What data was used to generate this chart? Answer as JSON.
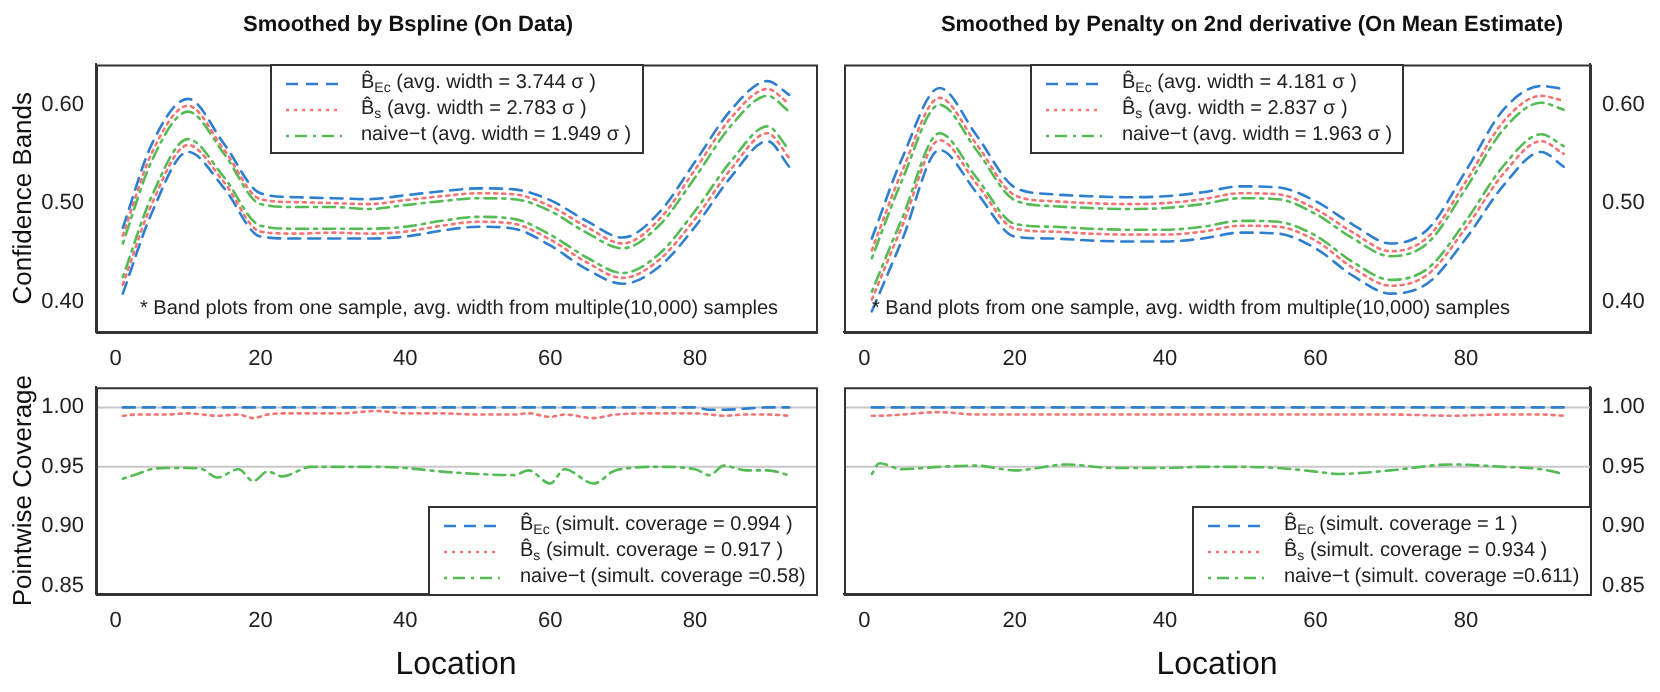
{
  "chart_data": [
    {
      "type": "line",
      "title": "Smoothed by Bspline (On Data)",
      "ylabel": "Confidence Bands",
      "legend": "top",
      "marker": "none",
      "annotations": [
        "* Band plots from one sample, avg. width from multiple(10,000) samples"
      ],
      "x": [
        1,
        5,
        10,
        15,
        20,
        25,
        30,
        35,
        40,
        45,
        50,
        55,
        60,
        65,
        70,
        75,
        80,
        85,
        90,
        93
      ],
      "xlim": [
        -2.7,
        96.7
      ],
      "xticks": [
        0,
        20,
        40,
        60,
        80
      ],
      "ylim": [
        0.369,
        0.641
      ],
      "yticks": [
        {
          "value": 0.4,
          "label": "0.40"
        },
        {
          "value": 0.5,
          "label": "0.50"
        },
        {
          "value": 0.6,
          "label": "0.60"
        }
      ],
      "series": [
        {
          "name": "B̂$_{Ec}$  (avg. width = 3.744 σ )",
          "color": "#2f7fd0",
          "line_style": "dashed",
          "values": [
            0.475,
            0.56,
            0.606,
            0.56,
            0.51,
            0.506,
            0.505,
            0.504,
            0.508,
            0.512,
            0.515,
            0.514,
            0.503,
            0.482,
            0.465,
            0.49,
            0.542,
            0.595,
            0.624,
            0.61
          ]
        },
        {
          "name": "B̂$_{s}$  (avg. width = 2.783 σ )",
          "color": "#f27474",
          "line_style": "dotted",
          "values": [
            0.467,
            0.551,
            0.599,
            0.554,
            0.504,
            0.501,
            0.5,
            0.499,
            0.503,
            0.507,
            0.51,
            0.509,
            0.497,
            0.476,
            0.459,
            0.483,
            0.534,
            0.587,
            0.616,
            0.601
          ]
        },
        {
          "name": "naive−t (avg. width = 1.949 σ )",
          "color": "#55bb55",
          "line_style": "dashdot",
          "values": [
            0.459,
            0.543,
            0.593,
            0.55,
            0.499,
            0.496,
            0.496,
            0.494,
            0.498,
            0.502,
            0.505,
            0.504,
            0.492,
            0.47,
            0.454,
            0.477,
            0.526,
            0.579,
            0.609,
            0.593
          ]
        },
        {
          "color": "#55bb55",
          "line_style": "dashdot",
          "values": [
            0.425,
            0.507,
            0.565,
            0.526,
            0.477,
            0.474,
            0.474,
            0.474,
            0.476,
            0.482,
            0.486,
            0.484,
            0.468,
            0.445,
            0.429,
            0.448,
            0.492,
            0.543,
            0.578,
            0.554
          ]
        },
        {
          "color": "#f27474",
          "line_style": "dotted",
          "values": [
            0.417,
            0.499,
            0.559,
            0.521,
            0.471,
            0.469,
            0.47,
            0.469,
            0.471,
            0.477,
            0.481,
            0.479,
            0.463,
            0.44,
            0.424,
            0.442,
            0.484,
            0.535,
            0.571,
            0.546
          ]
        },
        {
          "color": "#2f7fd0",
          "line_style": "dashed",
          "values": [
            0.408,
            0.49,
            0.552,
            0.515,
            0.466,
            0.464,
            0.464,
            0.464,
            0.466,
            0.472,
            0.476,
            0.474,
            0.457,
            0.433,
            0.418,
            0.435,
            0.476,
            0.527,
            0.563,
            0.537
          ]
        }
      ]
    },
    {
      "type": "line",
      "title": "Smoothed by Penalty on 2nd derivative (On Mean Estimate)",
      "legend": "top",
      "marker": "none",
      "annotations": [
        "* Band plots from one sample, avg. width from multiple(10,000) samples"
      ],
      "x": [
        1,
        5,
        10,
        15,
        20,
        25,
        30,
        35,
        40,
        45,
        50,
        55,
        60,
        65,
        70,
        75,
        80,
        85,
        90,
        93
      ],
      "xlim": [
        -2.7,
        96.5
      ],
      "xticks": [
        0,
        20,
        40,
        60,
        80
      ],
      "y2lim": [
        0.369,
        0.641
      ],
      "y2ticks": [
        {
          "value": 0.4,
          "label": "0.40"
        },
        {
          "value": 0.5,
          "label": "0.50"
        },
        {
          "value": 0.6,
          "label": "0.60"
        }
      ],
      "series": [
        {
          "name": "B̂$_{Ec}$  (avg. width = 4.181 σ )",
          "color": "#2f7fd0",
          "line_style": "dashed",
          "axis": "y2",
          "values": [
            0.464,
            0.545,
            0.617,
            0.568,
            0.516,
            0.509,
            0.507,
            0.506,
            0.507,
            0.511,
            0.517,
            0.516,
            0.502,
            0.478,
            0.459,
            0.474,
            0.533,
            0.595,
            0.619,
            0.616
          ]
        },
        {
          "name": "B̂$_{s}$  (avg. width = 2.837 σ )",
          "color": "#f27474",
          "line_style": "dotted",
          "axis": "y2",
          "values": [
            0.452,
            0.532,
            0.607,
            0.559,
            0.508,
            0.502,
            0.5,
            0.499,
            0.5,
            0.504,
            0.51,
            0.509,
            0.494,
            0.47,
            0.451,
            0.466,
            0.522,
            0.583,
            0.609,
            0.604
          ]
        },
        {
          "name": "naive−t (avg. width = 1.963 σ )",
          "color": "#55bb55",
          "line_style": "dashdot",
          "axis": "y2",
          "values": [
            0.444,
            0.523,
            0.6,
            0.553,
            0.503,
            0.497,
            0.495,
            0.494,
            0.495,
            0.499,
            0.505,
            0.504,
            0.489,
            0.464,
            0.446,
            0.46,
            0.515,
            0.575,
            0.602,
            0.595
          ]
        },
        {
          "color": "#55bb55",
          "line_style": "dashdot",
          "axis": "y2",
          "values": [
            0.41,
            0.484,
            0.571,
            0.525,
            0.479,
            0.476,
            0.474,
            0.473,
            0.473,
            0.476,
            0.482,
            0.481,
            0.467,
            0.44,
            0.422,
            0.434,
            0.482,
            0.538,
            0.57,
            0.558
          ]
        },
        {
          "color": "#f27474",
          "line_style": "dotted",
          "axis": "y2",
          "values": [
            0.402,
            0.476,
            0.564,
            0.519,
            0.474,
            0.471,
            0.469,
            0.468,
            0.468,
            0.471,
            0.477,
            0.476,
            0.462,
            0.434,
            0.416,
            0.428,
            0.475,
            0.53,
            0.563,
            0.55
          ]
        },
        {
          "color": "#2f7fd0",
          "line_style": "dashed",
          "axis": "y2",
          "values": [
            0.39,
            0.462,
            0.554,
            0.51,
            0.466,
            0.464,
            0.462,
            0.461,
            0.461,
            0.464,
            0.47,
            0.469,
            0.454,
            0.426,
            0.408,
            0.419,
            0.464,
            0.518,
            0.552,
            0.537
          ]
        }
      ]
    },
    {
      "type": "line",
      "xlabel": "Location",
      "ylabel": "Pointwise Coverage",
      "legend": "bottom right",
      "marker": "none",
      "x": [
        1,
        3,
        5,
        7,
        10,
        12,
        14,
        17,
        19,
        21,
        23,
        27,
        31,
        36,
        40,
        45,
        50,
        55,
        57,
        60,
        62,
        66,
        69,
        75,
        80,
        82,
        84,
        87,
        90,
        93
      ],
      "xlim": [
        -2.7,
        96.7
      ],
      "xticks": [
        0,
        20,
        40,
        60,
        80
      ],
      "ylim": [
        0.843,
        1.017
      ],
      "yticks": [
        {
          "value": 0.85,
          "label": "0.85"
        },
        {
          "value": 0.9,
          "label": "0.90"
        },
        {
          "value": 0.95,
          "label": "0.95"
        },
        {
          "value": 1,
          "label": "1.00"
        }
      ],
      "ref_lines": [
        {
          "axis": "y",
          "value": 1,
          "color": "#c8c8c8"
        },
        {
          "axis": "y",
          "value": 0.95,
          "color": "#c8c8c8"
        }
      ],
      "series": [
        {
          "name": "B̂$_{Ec}$  (simult. coverage = 0.994 )",
          "color": "#2f7fd0",
          "line_style": "dashed",
          "values": [
            1,
            1,
            1,
            1,
            1,
            1,
            1,
            1,
            1,
            1,
            1,
            1,
            1,
            1,
            1,
            1,
            1,
            1,
            1,
            1,
            1,
            1,
            1,
            1,
            1,
            0.998,
            0.998,
            0.999,
            1,
            1
          ]
        },
        {
          "name": "B̂$_{s}$  (simult. coverage = 0.917 )",
          "color": "#f27474",
          "line_style": "dotted",
          "values": [
            0.993,
            0.994,
            0.994,
            0.994,
            0.995,
            0.994,
            0.993,
            0.994,
            0.991,
            0.994,
            0.995,
            0.995,
            0.995,
            0.997,
            0.995,
            0.995,
            0.994,
            0.994,
            0.995,
            0.992,
            0.994,
            0.991,
            0.994,
            0.995,
            0.995,
            0.994,
            0.993,
            0.994,
            0.994,
            0.993
          ]
        },
        {
          "name": "naive−t (simult. coverage =0.58)",
          "color": "#55bb55",
          "line_style": "dashdot",
          "values": [
            0.94,
            0.944,
            0.948,
            0.949,
            0.949,
            0.948,
            0.941,
            0.948,
            0.938,
            0.946,
            0.942,
            0.95,
            0.95,
            0.95,
            0.949,
            0.946,
            0.944,
            0.943,
            0.947,
            0.936,
            0.948,
            0.936,
            0.947,
            0.95,
            0.948,
            0.943,
            0.951,
            0.947,
            0.947,
            0.943
          ]
        }
      ]
    },
    {
      "type": "line",
      "xlabel": "Location",
      "legend": "bottom right",
      "marker": "none",
      "x": [
        1,
        2,
        5,
        10,
        15,
        20,
        27,
        33,
        40,
        45,
        50,
        55,
        60,
        63,
        70,
        78,
        85,
        90,
        93
      ],
      "xlim": [
        -2.7,
        96.5
      ],
      "xticks": [
        0,
        20,
        40,
        60,
        80
      ],
      "y2lim": [
        0.843,
        1.017
      ],
      "y2ticks": [
        {
          "value": 0.85,
          "label": "0.85"
        },
        {
          "value": 0.9,
          "label": "0.90"
        },
        {
          "value": 0.95,
          "label": "0.95"
        },
        {
          "value": 1,
          "label": "1.00"
        }
      ],
      "ref_lines": [
        {
          "axis": "y2",
          "value": 1,
          "color": "#c8c8c8"
        },
        {
          "axis": "y2",
          "value": 0.95,
          "color": "#c8c8c8"
        }
      ],
      "series": [
        {
          "name": "B̂$_{Ec}$  (simult. coverage = 1 )",
          "color": "#2f7fd0",
          "line_style": "dashed",
          "axis": "y2",
          "values": [
            1,
            1,
            1,
            1,
            1,
            1,
            1,
            1,
            1,
            1,
            1,
            1,
            1,
            1,
            1,
            1,
            1,
            1,
            1
          ]
        },
        {
          "name": "B̂$_{s}$  (simult. coverage = 0.934 )",
          "color": "#f27474",
          "line_style": "dotted",
          "axis": "y2",
          "values": [
            0.993,
            0.993,
            0.994,
            0.996,
            0.994,
            0.994,
            0.994,
            0.994,
            0.994,
            0.994,
            0.994,
            0.994,
            0.994,
            0.994,
            0.994,
            0.993,
            0.994,
            0.994,
            0.993
          ]
        },
        {
          "name": "naive−t (simult. coverage =0.611)",
          "color": "#55bb55",
          "line_style": "dashdot",
          "axis": "y2",
          "values": [
            0.944,
            0.953,
            0.948,
            0.95,
            0.951,
            0.947,
            0.952,
            0.949,
            0.949,
            0.95,
            0.95,
            0.949,
            0.946,
            0.944,
            0.947,
            0.952,
            0.95,
            0.948,
            0.944
          ]
        }
      ]
    }
  ]
}
